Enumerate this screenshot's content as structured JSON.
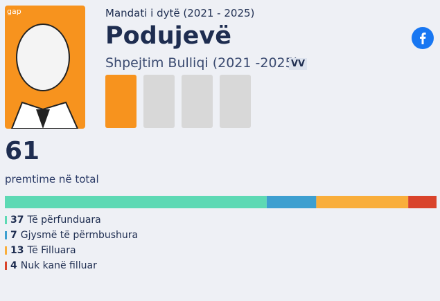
{
  "header": {
    "subtitle": "Mandati i dytë (2021 - 2025)",
    "title": "Podujevë",
    "mayor": "Shpejtim Bulliqi (2021 -2025)",
    "party": "VV",
    "portrait_logo": "gap"
  },
  "total": {
    "value": 61,
    "label": "premtime në total"
  },
  "status": [
    {
      "name": "Të përfunduara",
      "value": 37,
      "color": "#5dd9b4"
    },
    {
      "name": "Gjysmë të përmbushura",
      "value": 7,
      "color": "#3d9fd0"
    },
    {
      "name": "Të Filluara",
      "value": 13,
      "color": "#f9ae3b"
    },
    {
      "name": "Nuk kanë filluar",
      "value": 4,
      "color": "#d9432b"
    }
  ]
}
